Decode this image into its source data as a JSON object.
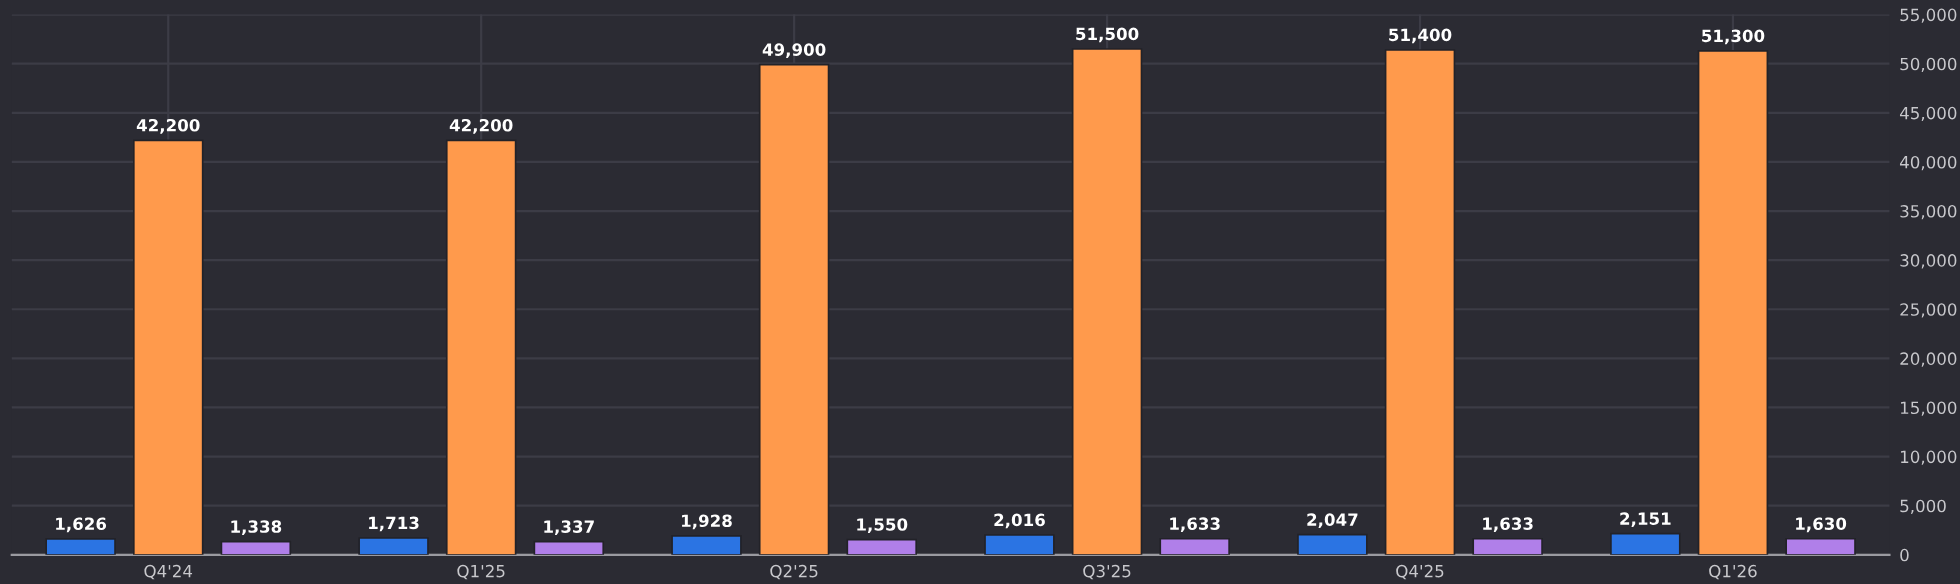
{
  "chart_data": {
    "type": "bar",
    "categories": [
      "Q4'24",
      "Q1'25",
      "Q2'25",
      "Q3'25",
      "Q4'25",
      "Q1'26"
    ],
    "series": [
      {
        "color": "#2b74e3",
        "values": [
          1626,
          1713,
          1928,
          2016,
          2047,
          2151
        ],
        "value_labels": [
          "1,626",
          "1,713",
          "1,928",
          "2,016",
          "2,047",
          "2,151"
        ]
      },
      {
        "color": "#ff9a4c",
        "values": [
          42200,
          42200,
          49900,
          51500,
          51400,
          51300
        ],
        "value_labels": [
          "42,200",
          "42,200",
          "49,900",
          "51,500",
          "51,400",
          "51,300"
        ]
      },
      {
        "color": "#b07fe9",
        "values": [
          1338,
          1337,
          1550,
          1633,
          1633,
          1630
        ],
        "value_labels": [
          "1,338",
          "1,337",
          "1,550",
          "1,633",
          "1,633",
          "1,630"
        ]
      }
    ],
    "ylim": [
      0,
      55000
    ],
    "yticks": [
      0,
      {
        "value": 5000,
        "label": "5,000"
      },
      {
        "value": 10000,
        "label": "10,000"
      },
      {
        "value": 15000,
        "label": "15,000"
      },
      {
        "value": 20000,
        "label": "20,000"
      },
      {
        "value": 25000,
        "label": "25,000"
      },
      {
        "value": 30000,
        "label": "30,000"
      },
      {
        "value": 35000,
        "label": "35,000"
      },
      {
        "value": 40000,
        "label": "40,000"
      },
      {
        "value": 45000,
        "label": "45,000"
      },
      {
        "value": 50000,
        "label": "50,000"
      },
      {
        "value": 55000,
        "label": "55,000"
      }
    ],
    "grid": true
  }
}
